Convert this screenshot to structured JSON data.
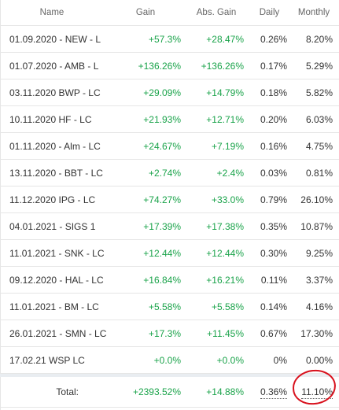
{
  "headers": {
    "name": "Name",
    "gain": "Gain",
    "abs_gain": "Abs. Gain",
    "daily": "Daily",
    "monthly": "Monthly"
  },
  "rows": [
    {
      "name": "01.09.2020 - NEW - L",
      "gain": "+57.3%",
      "abs_gain": "+28.47%",
      "daily": "0.26%",
      "monthly": "8.20%"
    },
    {
      "name": "01.07.2020 - AMB - L",
      "gain": "+136.26%",
      "abs_gain": "+136.26%",
      "daily": "0.17%",
      "monthly": "5.29%"
    },
    {
      "name": "03.11.2020 BWP - LC",
      "gain": "+29.09%",
      "abs_gain": "+14.79%",
      "daily": "0.18%",
      "monthly": "5.82%"
    },
    {
      "name": "10.11.2020 HF - LC",
      "gain": "+21.93%",
      "abs_gain": "+12.71%",
      "daily": "0.20%",
      "monthly": "6.03%"
    },
    {
      "name": "01.11.2020 - Alm - LC",
      "gain": "+24.67%",
      "abs_gain": "+7.19%",
      "daily": "0.16%",
      "monthly": "4.75%"
    },
    {
      "name": "13.11.2020 - BBT - LC",
      "gain": "+2.74%",
      "abs_gain": "+2.4%",
      "daily": "0.03%",
      "monthly": "0.81%"
    },
    {
      "name": "11.12.2020 IPG - LC",
      "gain": "+74.27%",
      "abs_gain": "+33.0%",
      "daily": "0.79%",
      "monthly": "26.10%"
    },
    {
      "name": "04.01.2021 - SIGS 1",
      "gain": "+17.39%",
      "abs_gain": "+17.38%",
      "daily": "0.35%",
      "monthly": "10.87%"
    },
    {
      "name": "11.01.2021 - SNK - LC",
      "gain": "+12.44%",
      "abs_gain": "+12.44%",
      "daily": "0.30%",
      "monthly": "9.25%"
    },
    {
      "name": "09.12.2020 - HAL - LC",
      "gain": "+16.84%",
      "abs_gain": "+16.21%",
      "daily": "0.11%",
      "monthly": "3.37%"
    },
    {
      "name": "11.01.2021 - BM - LC",
      "gain": "+5.58%",
      "abs_gain": "+5.58%",
      "daily": "0.14%",
      "monthly": "4.16%"
    },
    {
      "name": "26.01.2021 - SMN - LC",
      "gain": "+17.3%",
      "abs_gain": "+11.45%",
      "daily": "0.67%",
      "monthly": "17.30%"
    },
    {
      "name": "17.02.21 WSP LC",
      "gain": "+0.0%",
      "abs_gain": "+0.0%",
      "daily": "0%",
      "monthly": "0.00%"
    }
  ],
  "total": {
    "label": "Total:",
    "gain": "+2393.52%",
    "abs_gain": "+14.88%",
    "daily": "0.36%",
    "monthly": "11.10%"
  },
  "colors": {
    "positive": "#1aa34a",
    "annotation_circle": "#d8101c"
  }
}
